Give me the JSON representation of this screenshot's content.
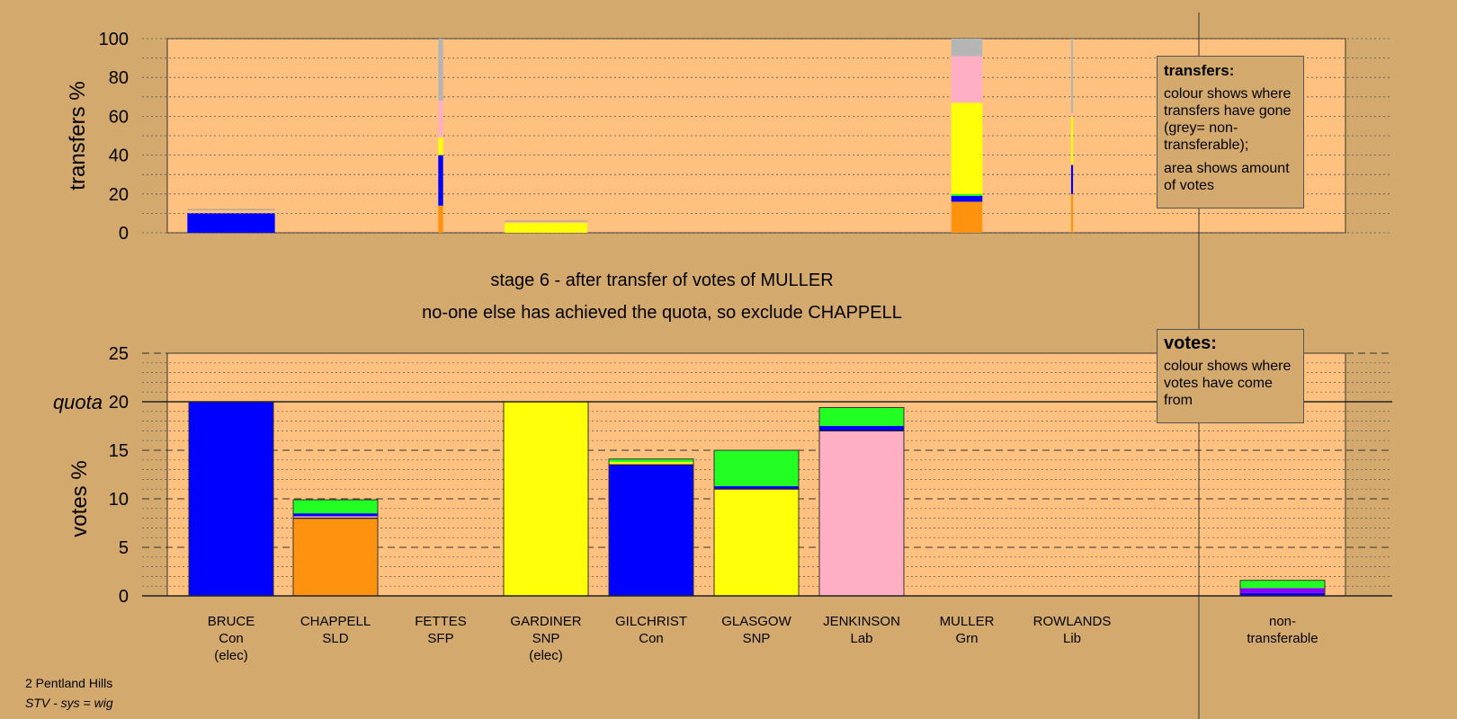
{
  "chart_data": [
    {
      "type": "bar",
      "stacked": true,
      "ylabel": "transfers %",
      "ylim": [
        0,
        100
      ],
      "yticks": [
        0,
        20,
        40,
        60,
        80,
        100
      ],
      "grid": true,
      "note": "transfers of votes of MULLER; bar width shows amount of votes",
      "bars": [
        {
          "candidate": "BRUCE",
          "size": 0.9,
          "segments": [
            {
              "party": "Con",
              "value": 10
            },
            {
              "party": "empty",
              "value": 2
            }
          ]
        },
        {
          "candidate": "FETTES",
          "size": 0.05,
          "segments": [
            {
              "party": "SLD",
              "value": 14
            },
            {
              "party": "Con",
              "value": 26
            },
            {
              "party": "SNP",
              "value": 9
            },
            {
              "party": "Lab",
              "value": 19
            },
            {
              "party": "non-transferable",
              "value": 32
            }
          ]
        },
        {
          "candidate": "GARDINER",
          "size": 0.85,
          "segments": [
            {
              "party": "SNP",
              "value": 5
            },
            {
              "party": "empty",
              "value": 1
            }
          ]
        },
        {
          "candidate": "MULLER",
          "size": 0.32,
          "segments": [
            {
              "party": "SLD",
              "value": 16
            },
            {
              "party": "Con",
              "value": 3
            },
            {
              "party": "Grn",
              "value": 1
            },
            {
              "party": "SNP",
              "value": 47
            },
            {
              "party": "Lab",
              "value": 24
            },
            {
              "party": "non-transferable",
              "value": 9
            }
          ]
        },
        {
          "candidate": "ROWLANDS",
          "size": 0.02,
          "segments": [
            {
              "party": "SLD",
              "value": 20
            },
            {
              "party": "Con",
              "value": 15
            },
            {
              "party": "SNP",
              "value": 25
            },
            {
              "party": "Lab",
              "value": 2
            },
            {
              "party": "non-transferable",
              "value": 38
            }
          ]
        }
      ]
    },
    {
      "type": "bar",
      "stacked": true,
      "ylabel": "votes %",
      "ylim": [
        0,
        25
      ],
      "yticks": [
        0,
        5,
        10,
        15,
        20,
        25
      ],
      "quota": 20,
      "quota_label": "quota",
      "grid": true,
      "categories": [
        {
          "name": "BRUCE",
          "party": "Con",
          "status": "(elec)"
        },
        {
          "name": "CHAPPELL",
          "party": "SLD",
          "status": ""
        },
        {
          "name": "FETTES",
          "party": "SFP",
          "status": ""
        },
        {
          "name": "GARDINER",
          "party": "SNP",
          "status": "(elec)"
        },
        {
          "name": "GILCHRIST",
          "party": "Con",
          "status": ""
        },
        {
          "name": "GLASGOW",
          "party": "SNP",
          "status": ""
        },
        {
          "name": "JENKINSON",
          "party": "Lab",
          "status": ""
        },
        {
          "name": "MULLER",
          "party": "Grn",
          "status": ""
        },
        {
          "name": "ROWLANDS",
          "party": "Lib",
          "status": ""
        }
      ],
      "bars": [
        {
          "segments": [
            {
              "party": "Con",
              "value": 20.0
            }
          ]
        },
        {
          "segments": [
            {
              "party": "SLD",
              "value": 8.0
            },
            {
              "party": "Lab",
              "value": 0.2
            },
            {
              "party": "Con",
              "value": 0.3
            },
            {
              "party": "Grn",
              "value": 1.4
            }
          ]
        },
        {
          "segments": []
        },
        {
          "segments": [
            {
              "party": "SNP",
              "value": 20.0
            }
          ]
        },
        {
          "segments": [
            {
              "party": "Con",
              "value": 13.5
            },
            {
              "party": "Lab",
              "value": 0.1
            },
            {
              "party": "SNP",
              "value": 0.2
            },
            {
              "party": "Grn",
              "value": 0.3
            }
          ]
        },
        {
          "segments": [
            {
              "party": "SNP",
              "value": 11.0
            },
            {
              "party": "Con",
              "value": 0.3
            },
            {
              "party": "Grn",
              "value": 3.7
            }
          ]
        },
        {
          "segments": [
            {
              "party": "Lab",
              "value": 17.0
            },
            {
              "party": "Con",
              "value": 0.5
            },
            {
              "party": "Grn",
              "value": 1.9
            }
          ]
        },
        {
          "segments": []
        },
        {
          "segments": []
        }
      ],
      "non_transferable": {
        "label_line1": "non-",
        "label_line2": "transferable",
        "segments": [
          {
            "party": "Con",
            "value": 0.3
          },
          {
            "party": "SFP",
            "value": 0.5
          },
          {
            "party": "Grn",
            "value": 0.8
          }
        ]
      }
    }
  ],
  "colors": {
    "Con": "#0000ff",
    "SLD": "#ff9310",
    "SNP": "#ffff0a",
    "Lab": "#ffafc3",
    "Grn": "#22ff22",
    "SFP": "#8b00ff",
    "Lib": "#ffd700",
    "non-transferable": "#b5b5b5",
    "plot_area": "#ffc17f",
    "background": "#d4a96e"
  },
  "stage_text_line1": "stage 6 - after transfer of votes of MULLER",
  "stage_text_line2": "no-one else has achieved the quota, so exclude CHAPPELL",
  "legend_transfers": {
    "title": "transfers:",
    "text1": "colour shows where transfers have gone (grey= non-transferable);",
    "text2": "area shows amount of votes"
  },
  "legend_votes": {
    "title": "votes:",
    "text": "colour shows where votes have come from"
  },
  "footer": {
    "constituency": "2 Pentland Hills",
    "system": "STV - sys = wig"
  }
}
